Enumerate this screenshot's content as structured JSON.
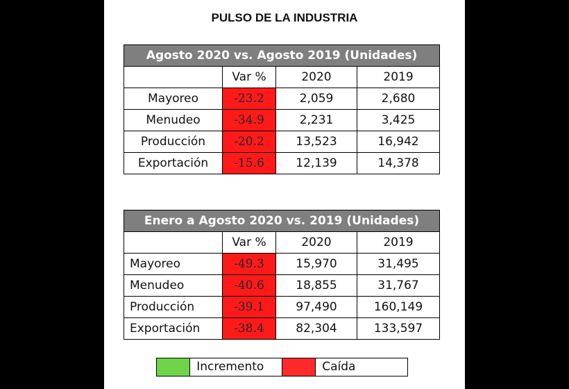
{
  "title": "PULSO DE LA INDUSTRIA",
  "colors": {
    "increment": "#6fd44a",
    "decrease": "#ff1a1a",
    "header_bg": "#7f7f7f"
  },
  "table1": {
    "header": "Agosto 2020 vs. Agosto 2019 (Unidades)",
    "columns": [
      "",
      "Var %",
      "2020",
      "2019"
    ],
    "rows": [
      {
        "label": "Mayoreo",
        "var": "-23.2",
        "y2020": "2,059",
        "y2019": "2,680"
      },
      {
        "label": "Menudeo",
        "var": "-34.9",
        "y2020": "2,231",
        "y2019": "3,425"
      },
      {
        "label": "Producción",
        "var": "-20.2",
        "y2020": "13,523",
        "y2019": "16,942"
      },
      {
        "label": "Exportación",
        "var": "-15.6",
        "y2020": "12,139",
        "y2019": "14,378"
      }
    ]
  },
  "table2": {
    "header": "Enero a Agosto 2020 vs. 2019 (Unidades)",
    "columns": [
      "",
      "Var %",
      "2020",
      "2019"
    ],
    "rows": [
      {
        "label": "Mayoreo",
        "var": "-49.3",
        "y2020": "15,970",
        "y2019": "31,495"
      },
      {
        "label": "Menudeo",
        "var": "-40.6",
        "y2020": "18,855",
        "y2019": "31,767"
      },
      {
        "label": "Producción",
        "var": "-39.1",
        "y2020": "97,490",
        "y2019": "160,149"
      },
      {
        "label": "Exportación",
        "var": "-38.4",
        "y2020": "82,304",
        "y2019": "133,597"
      }
    ]
  },
  "legend": {
    "increment_label": "Incremento",
    "decrease_label": "Caída"
  }
}
